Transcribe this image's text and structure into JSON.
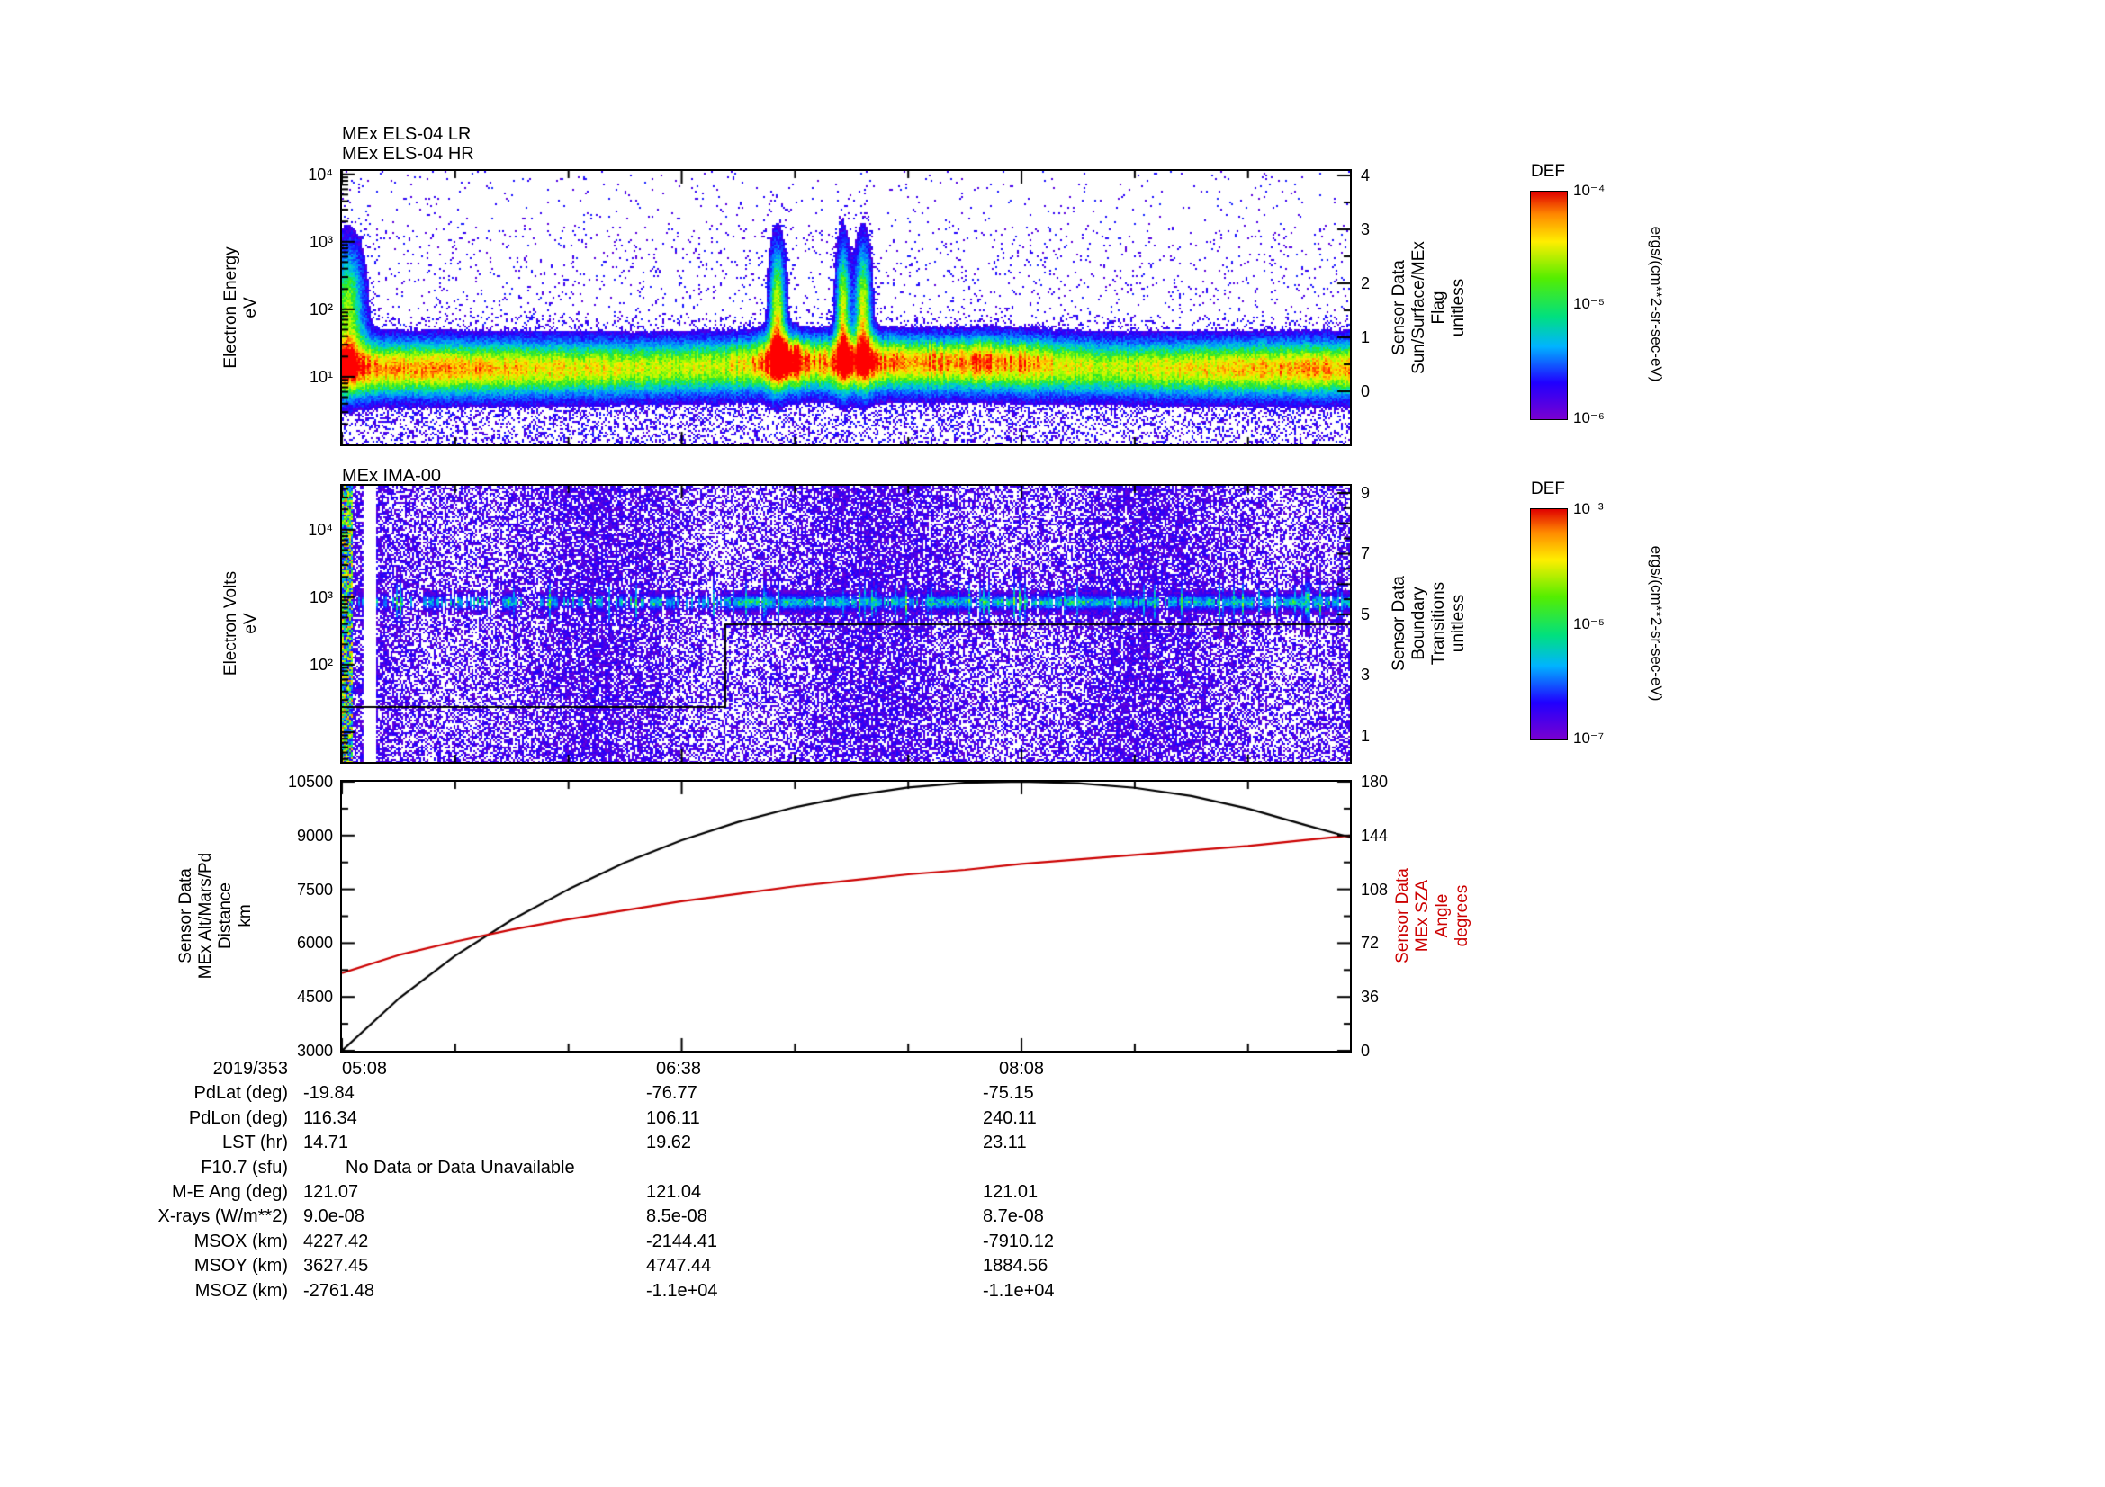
{
  "panels": {
    "els": {
      "title_lines": [
        "MEx ELS-04 LR",
        "MEx ELS-04 HR"
      ],
      "ylabel_lines": [
        "Electron Energy",
        "eV"
      ],
      "yticks": [
        "10⁴",
        "10³",
        "10²",
        "10¹"
      ],
      "right_label_lines": [
        "Sensor Data",
        "Sun/Surface/MEx",
        "Flag",
        "unitless"
      ],
      "right_ticks": [
        "4",
        "3",
        "2",
        "1",
        "0"
      ]
    },
    "ima": {
      "title": "MEx IMA-00",
      "ylabel_lines": [
        "Electron Volts",
        "eV"
      ],
      "yticks": [
        "10⁴",
        "10³",
        "10²"
      ],
      "right_label_lines": [
        "Sensor Data",
        "Boundary",
        "Transitions",
        "unitless"
      ],
      "right_ticks": [
        "9",
        "7",
        "5",
        "3",
        "1"
      ]
    },
    "orbit": {
      "ylabel_lines": [
        "Sensor Data",
        "MEx Alt/Mars/Pd",
        "Distance",
        "km"
      ],
      "yticks": [
        "10500",
        "9000",
        "7500",
        "6000",
        "4500",
        "3000"
      ],
      "right_label_lines": [
        "Sensor Data",
        "MEx SZA",
        "Angle",
        "degrees"
      ],
      "right_ticks": [
        "180",
        "144",
        "108",
        "72",
        "36",
        "0"
      ]
    }
  },
  "colorbars": [
    {
      "title": "DEF",
      "ticks": [
        "10⁻⁴",
        "10⁻⁵",
        "10⁻⁶"
      ],
      "unit": "ergs/(cm**2-sr-sec-eV)"
    },
    {
      "title": "DEF",
      "ticks": [
        "10⁻³",
        "10⁻⁵",
        "10⁻⁷"
      ],
      "unit": "ergs/(cm**2-sr-sec-eV)"
    }
  ],
  "colors": {
    "sza_line": "#cc0000",
    "altitude_line": "#000000"
  },
  "table": {
    "rows": [
      {
        "label": "2019/353",
        "values": [
          "05:08",
          "06:38",
          "08:08"
        ]
      },
      {
        "label": "PdLat (deg)",
        "values": [
          "-19.84",
          "-76.77",
          "-75.15"
        ]
      },
      {
        "label": "PdLon (deg)",
        "values": [
          "116.34",
          "106.11",
          "240.11"
        ]
      },
      {
        "label": "LST (hr)",
        "values": [
          "14.71",
          "19.62",
          "23.11"
        ]
      },
      {
        "label": "F10.7 (sfu)",
        "values": [
          "No Data or Data Unavailable"
        ]
      },
      {
        "label": "M-E Ang (deg)",
        "values": [
          "121.07",
          "121.04",
          "121.01"
        ]
      },
      {
        "label": "X-rays (W/m**2)",
        "values": [
          "9.0e-08",
          "8.5e-08",
          "8.7e-08"
        ]
      },
      {
        "label": "MSOX (km)",
        "values": [
          "4227.42",
          "-2144.41",
          "-7910.12"
        ]
      },
      {
        "label": "MSOY (km)",
        "values": [
          "3627.45",
          "4747.44",
          "1884.56"
        ]
      },
      {
        "label": "MSOZ (km)",
        "values": [
          "-2761.48",
          "-1.1e+04",
          "-1.1e+04"
        ]
      }
    ]
  },
  "chart_data": [
    {
      "type": "heatmap",
      "title": "MEx ELS-04 LR / MEx ELS-04 HR",
      "ylabel": "Electron Energy (eV)",
      "yscale": "log",
      "ylim": [
        1,
        10000
      ],
      "x_minutes_range": [
        0,
        267
      ],
      "xticks": [
        "05:08",
        "06:38",
        "08:08"
      ],
      "right_axis": {
        "label": "Sensor Data Sun/Surface/MEx Flag (unitless)",
        "ticks": [
          0,
          1,
          2,
          3,
          4
        ]
      },
      "colorbar": {
        "title": "DEF",
        "unit": "ergs/(cm**2-sr-sec-eV)",
        "min": "1e-6",
        "max": "1e-4"
      },
      "features": [
        {
          "name": "main-electron-band",
          "energy_eV": [
            5,
            80
          ],
          "intensity": "high, green-yellow core across full time range"
        },
        {
          "name": "intense-red-patches",
          "time_fraction": [
            0.42,
            0.72
          ],
          "energy_eV": [
            8,
            40
          ],
          "intensity": "saturated red/orange"
        },
        {
          "name": "vertical-enhancements",
          "time_fraction": [
            0.43,
            0.52
          ],
          "energy_eV": [
            10,
            500
          ],
          "intensity": "cyan-yellow columns"
        },
        {
          "name": "background-speckle",
          "energy_eV": [
            100,
            10000
          ],
          "intensity": "sparse purple/blue dots on white"
        }
      ]
    },
    {
      "type": "heatmap",
      "title": "MEx IMA-00",
      "ylabel": "Electron Volts (eV)",
      "yscale": "log",
      "ylim": [
        4,
        45000
      ],
      "x_minutes_range": [
        0,
        267
      ],
      "xticks": [
        "05:08",
        "06:38",
        "08:08"
      ],
      "right_axis": {
        "label": "Sensor Data Boundary Transitions (unitless)",
        "ticks": [
          1,
          3,
          5,
          7,
          9
        ]
      },
      "colorbar": {
        "title": "DEF",
        "unit": "ergs/(cm**2-sr-sec-eV)",
        "min": "1e-7",
        "max": "1e-3"
      },
      "features": [
        {
          "name": "dense-background",
          "intensity": "purple/blue speckle over most of panel with white gaps"
        },
        {
          "name": "ion-band",
          "energy_eV": [
            700,
            1200
          ],
          "intensity": "intermittent cyan/green dashes, stronger in right two-thirds"
        },
        {
          "name": "boundary-step-annotation",
          "description": "thin black step line: low (~20 eV) in left third, jumping to ~400 eV for the remainder"
        }
      ]
    },
    {
      "type": "line",
      "x_minutes": [
        0,
        15,
        30,
        45,
        60,
        75,
        90,
        105,
        120,
        135,
        150,
        165,
        180,
        195,
        210,
        225,
        240,
        255,
        267
      ],
      "xtick_minutes": [
        0,
        90,
        180
      ],
      "xtick_labels": [
        "05:08",
        "06:38",
        "08:08"
      ],
      "series": [
        {
          "name": "MEx Alt/Mars/Pd Distance (km)",
          "axis": "left",
          "color": "#000000",
          "values": [
            3000,
            4450,
            5650,
            6650,
            7500,
            8250,
            8870,
            9380,
            9790,
            10110,
            10340,
            10470,
            10500,
            10460,
            10330,
            10100,
            9750,
            9300,
            8950
          ]
        },
        {
          "name": "MEx SZA Angle (degrees)",
          "axis": "right",
          "color": "#cc0000",
          "values": [
            52,
            64,
            73,
            81,
            88,
            94,
            100,
            105,
            110,
            114,
            118,
            121,
            125,
            128,
            131,
            134,
            137,
            141,
            144
          ]
        }
      ],
      "ylim": [
        3000,
        10500
      ],
      "yticks": [
        3000,
        4500,
        6000,
        7500,
        9000,
        10500
      ],
      "y2lim": [
        0,
        180
      ],
      "y2ticks": [
        0,
        36,
        72,
        108,
        144,
        180
      ],
      "grid": false,
      "legend": "rotated axis labels on left (black) and right (red)"
    }
  ]
}
